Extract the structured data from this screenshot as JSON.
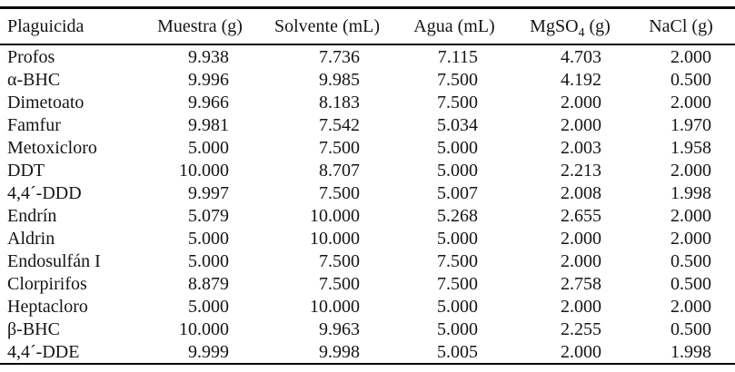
{
  "page": {
    "background_color": "#ffffff",
    "text_color": "#151515",
    "rule_color": "#0a0a0a"
  },
  "table": {
    "columns": [
      {
        "label": "Plaguicida"
      },
      {
        "label": "Muestra (g)"
      },
      {
        "label": "Solvente (mL)"
      },
      {
        "label": "Agua (mL)"
      },
      {
        "prefix": "MgSO",
        "sub": "4",
        "suffix": " (g)"
      },
      {
        "label": "NaCl (g)"
      }
    ],
    "rows": [
      [
        "Profos",
        "9.938",
        "7.736",
        "7.115",
        "4.703",
        "2.000"
      ],
      [
        "α-BHC",
        "9.996",
        "9.985",
        "7.500",
        "4.192",
        "0.500"
      ],
      [
        "Dimetoato",
        "9.966",
        "8.183",
        "7.500",
        "2.000",
        "2.000"
      ],
      [
        "Famfur",
        "9.981",
        "7.542",
        "5.034",
        "2.000",
        "1.970"
      ],
      [
        "Metoxicloro",
        "5.000",
        "7.500",
        "5.000",
        "2.003",
        "1.958"
      ],
      [
        "DDT",
        "10.000",
        "8.707",
        "5.000",
        "2.213",
        "2.000"
      ],
      [
        "4,4´-DDD",
        "9.997",
        "7.500",
        "5.007",
        "2.008",
        "1.998"
      ],
      [
        "Endrín",
        "5.079",
        "10.000",
        "5.268",
        "2.655",
        "2.000"
      ],
      [
        "Aldrin",
        "5.000",
        "10.000",
        "5.000",
        "2.000",
        "2.000"
      ],
      [
        "Endosulfán I",
        "5.000",
        "7.500",
        "7.500",
        "2.000",
        "0.500"
      ],
      [
        "Clorpirifos",
        "8.879",
        "7.500",
        "7.500",
        "2.758",
        "0.500"
      ],
      [
        "Heptacloro",
        "5.000",
        "10.000",
        "5.000",
        "2.000",
        "2.000"
      ],
      [
        "β-BHC",
        "10.000",
        "9.963",
        "5.000",
        "2.255",
        "0.500"
      ],
      [
        "4,4´-DDE",
        "9.999",
        "9.998",
        "5.005",
        "2.000",
        "1.998"
      ]
    ]
  }
}
